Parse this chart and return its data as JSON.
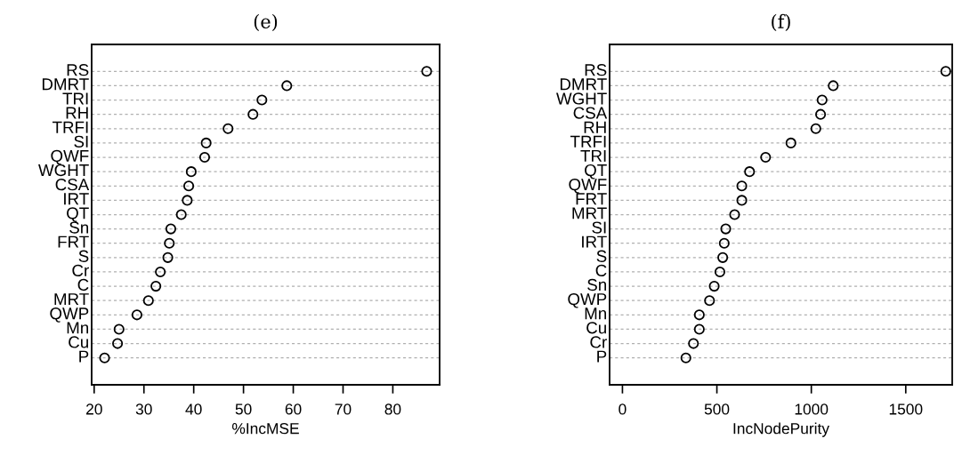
{
  "chart_data": [
    {
      "type": "scatter",
      "title": "(e)",
      "xlabel": "%IncMSE",
      "orientation": "horizontal",
      "grid": "y",
      "marker": "circle",
      "color": "#000000",
      "categories": [
        "RS",
        "DMRT",
        "TRI",
        "RH",
        "TRFI",
        "SI",
        "QWF",
        "WGHT",
        "CSA",
        "IRT",
        "QT",
        "Sn",
        "FRT",
        "S",
        "Cr",
        "C",
        "MRT",
        "QWP",
        "Mn",
        "Cu",
        "P"
      ],
      "values": [
        86.8,
        58.7,
        53.7,
        51.9,
        46.9,
        42.5,
        42.2,
        39.5,
        39.0,
        38.7,
        37.5,
        35.4,
        35.1,
        34.8,
        33.3,
        32.4,
        30.9,
        28.6,
        25.0,
        24.7,
        22.1
      ],
      "xlim": [
        19.5,
        89.4
      ],
      "xticks": [
        20,
        30,
        40,
        50,
        60,
        70,
        80
      ]
    },
    {
      "type": "scatter",
      "title": "(f)",
      "xlabel": "IncNodePurity",
      "orientation": "horizontal",
      "grid": "y",
      "marker": "circle",
      "color": "#000000",
      "categories": [
        "RS",
        "DMRT",
        "WGHT",
        "CSA",
        "RH",
        "TRFI",
        "TRI",
        "QT",
        "QWF",
        "FRT",
        "MRT",
        "SI",
        "IRT",
        "S",
        "C",
        "Sn",
        "QWP",
        "Mn",
        "Cu",
        "Cr",
        "P"
      ],
      "values": [
        1712,
        1116,
        1057,
        1049,
        1024,
        892,
        758,
        673,
        632,
        632,
        594,
        547,
        539,
        531,
        516,
        486,
        461,
        407,
        407,
        376,
        336
      ],
      "xlim": [
        -68,
        1746
      ],
      "xticks": [
        0,
        500,
        1000,
        1500
      ]
    }
  ]
}
